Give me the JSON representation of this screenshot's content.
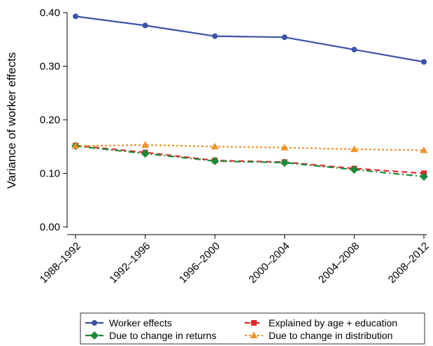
{
  "chart_data": {
    "type": "line",
    "ylabel": "Variance of worker effects",
    "xlabel": "",
    "categories": [
      "1988–1992",
      "1992–1996",
      "1996–2000",
      "2000–2004",
      "2004–2008",
      "2008–2012"
    ],
    "yticks": [
      "0.00",
      "0.10",
      "0.20",
      "0.30",
      "0.40"
    ],
    "ylim": [
      0,
      0.4
    ],
    "grid": false,
    "legend_position": "bottom",
    "series": [
      {
        "name": "Worker effects",
        "values": [
          0.393,
          0.376,
          0.356,
          0.354,
          0.331,
          0.308
        ],
        "color": "#3a52a8",
        "marker": "circle",
        "dash": "solid"
      },
      {
        "name": "Explained by age + education",
        "values": [
          0.152,
          0.139,
          0.124,
          0.121,
          0.109,
          0.1
        ],
        "color": "#e8242b",
        "marker": "square",
        "dash": "dashed"
      },
      {
        "name": "Due to change in returns",
        "values": [
          0.151,
          0.137,
          0.123,
          0.12,
          0.107,
          0.094
        ],
        "color": "#1a8a3a",
        "marker": "diamond",
        "dash": "dashdot"
      },
      {
        "name": "Due to change in distribution",
        "values": [
          0.151,
          0.153,
          0.15,
          0.148,
          0.145,
          0.143
        ],
        "color": "#f0922b",
        "marker": "triangle",
        "dash": "dotted"
      }
    ]
  }
}
